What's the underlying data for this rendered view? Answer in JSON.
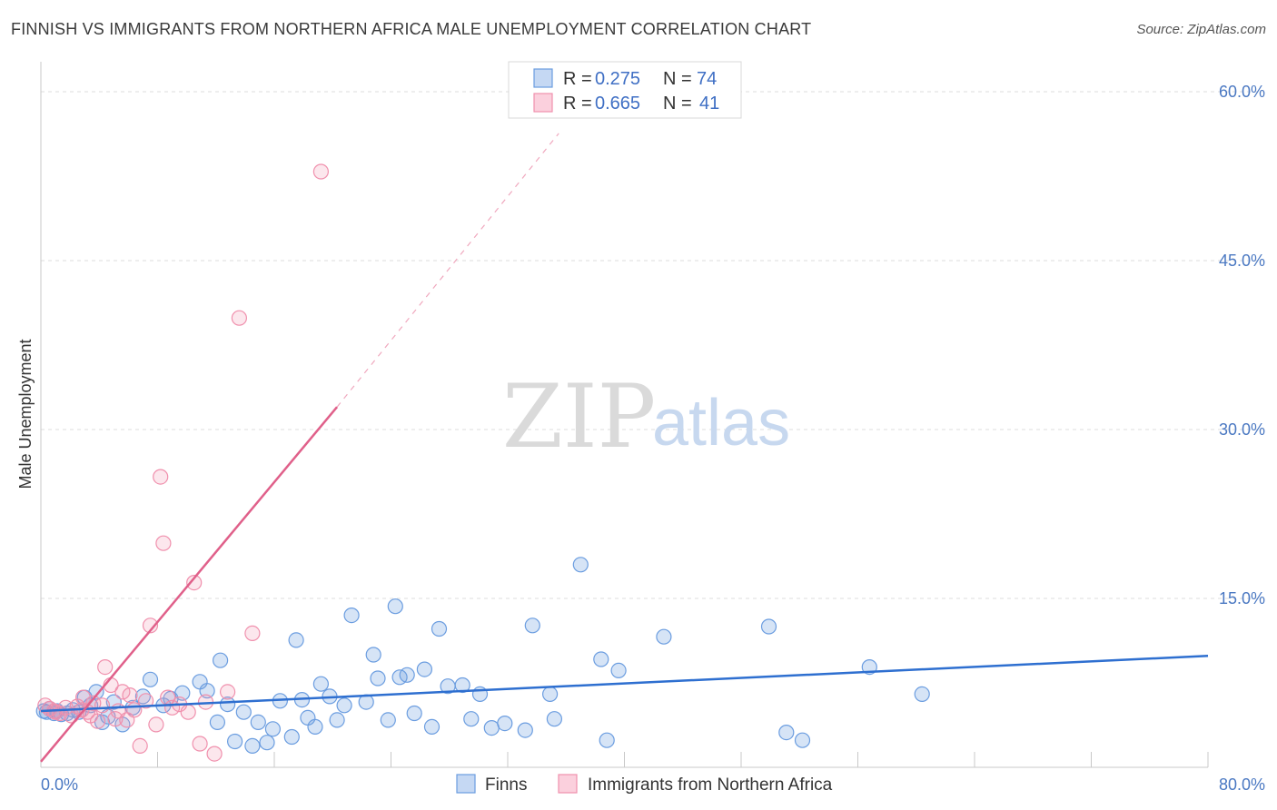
{
  "title": "FINNISH VS IMMIGRANTS FROM NORTHERN AFRICA MALE UNEMPLOYMENT CORRELATION CHART",
  "source": "Source: ZipAtlas.com",
  "watermark": {
    "zip": "ZIP",
    "atlas": "atlas"
  },
  "colors": {
    "finns": "#6b9de0",
    "finns_line": "#2e6fd0",
    "immigrants": "#f090ad",
    "immigrants_line": "#e0608a",
    "grid": "#dedede",
    "tick_text": "#4a78c2"
  },
  "chart_data": {
    "type": "scatter",
    "ylabel": "Male Unemployment",
    "xlim": [
      0,
      80
    ],
    "ylim": [
      0,
      62.5
    ],
    "x_tick_labels": [
      "0.0%",
      "80.0%"
    ],
    "y_ticks": [
      15,
      30,
      45,
      60
    ],
    "y_tick_labels": [
      "15.0%",
      "30.0%",
      "45.0%",
      "60.0%"
    ],
    "legend_position": "top-center",
    "legend": [
      {
        "r_label": "R =",
        "r": "0.275",
        "n_label": "N =",
        "n": "74"
      },
      {
        "r_label": "R =",
        "r": "0.665",
        "n_label": "N =",
        "n": "41"
      }
    ],
    "series": [
      {
        "name": "Finns",
        "trend": {
          "x": [
            0,
            80
          ],
          "y": [
            5.0,
            9.9
          ]
        },
        "points": [
          [
            0.2,
            5.0
          ],
          [
            0.4,
            4.9
          ],
          [
            0.6,
            5.2
          ],
          [
            0.9,
            4.8
          ],
          [
            1.1,
            5.0
          ],
          [
            1.4,
            4.7
          ],
          [
            1.8,
            4.8
          ],
          [
            2.2,
            5.1
          ],
          [
            2.6,
            4.9
          ],
          [
            3.0,
            6.2
          ],
          [
            3.4,
            5.5
          ],
          [
            3.8,
            6.7
          ],
          [
            4.2,
            4.0
          ],
          [
            4.6,
            4.5
          ],
          [
            5.0,
            5.8
          ],
          [
            5.6,
            3.8
          ],
          [
            6.3,
            5.3
          ],
          [
            7.0,
            6.3
          ],
          [
            7.5,
            7.8
          ],
          [
            8.4,
            5.5
          ],
          [
            8.9,
            6.1
          ],
          [
            9.7,
            6.6
          ],
          [
            10.9,
            7.6
          ],
          [
            11.4,
            6.8
          ],
          [
            12.1,
            4.0
          ],
          [
            12.3,
            9.5
          ],
          [
            12.8,
            5.6
          ],
          [
            13.3,
            2.3
          ],
          [
            13.9,
            4.9
          ],
          [
            14.5,
            1.9
          ],
          [
            14.9,
            4.0
          ],
          [
            15.5,
            2.2
          ],
          [
            15.9,
            3.4
          ],
          [
            16.4,
            5.9
          ],
          [
            17.2,
            2.7
          ],
          [
            17.5,
            11.3
          ],
          [
            17.9,
            6.0
          ],
          [
            18.3,
            4.4
          ],
          [
            18.8,
            3.6
          ],
          [
            19.2,
            7.4
          ],
          [
            19.8,
            6.3
          ],
          [
            20.3,
            4.2
          ],
          [
            20.8,
            5.5
          ],
          [
            21.3,
            13.5
          ],
          [
            22.3,
            5.8
          ],
          [
            22.8,
            10.0
          ],
          [
            23.1,
            7.9
          ],
          [
            23.8,
            4.2
          ],
          [
            24.3,
            14.3
          ],
          [
            24.6,
            8.0
          ],
          [
            25.1,
            8.2
          ],
          [
            25.6,
            4.8
          ],
          [
            26.3,
            8.7
          ],
          [
            26.8,
            3.6
          ],
          [
            27.3,
            12.3
          ],
          [
            27.9,
            7.2
          ],
          [
            28.9,
            7.3
          ],
          [
            29.5,
            4.3
          ],
          [
            30.1,
            6.5
          ],
          [
            30.9,
            3.5
          ],
          [
            31.8,
            3.9
          ],
          [
            33.2,
            3.3
          ],
          [
            33.7,
            12.6
          ],
          [
            34.9,
            6.5
          ],
          [
            35.2,
            4.3
          ],
          [
            37.0,
            18.0
          ],
          [
            38.4,
            9.6
          ],
          [
            38.8,
            2.4
          ],
          [
            39.6,
            8.6
          ],
          [
            42.7,
            11.6
          ],
          [
            49.9,
            12.5
          ],
          [
            51.1,
            3.1
          ],
          [
            52.2,
            2.4
          ],
          [
            56.8,
            8.9
          ],
          [
            60.4,
            6.5
          ]
        ]
      },
      {
        "name": "Immigrants from Northern Africa",
        "trend": {
          "x": [
            0,
            20.3
          ],
          "y": [
            0.5,
            32.0
          ]
        },
        "trend_ext": {
          "x": [
            20.3,
            35.5
          ],
          "y": [
            32.0,
            56.3
          ]
        },
        "points": [
          [
            0.3,
            5.5
          ],
          [
            0.6,
            5.2
          ],
          [
            0.9,
            5.0
          ],
          [
            1.3,
            4.8
          ],
          [
            1.7,
            5.3
          ],
          [
            2.1,
            4.6
          ],
          [
            2.5,
            5.4
          ],
          [
            2.9,
            6.2
          ],
          [
            3.2,
            4.9
          ],
          [
            3.6,
            5.7
          ],
          [
            3.9,
            4.1
          ],
          [
            4.2,
            5.5
          ],
          [
            4.4,
            8.9
          ],
          [
            4.8,
            7.3
          ],
          [
            5.1,
            4.3
          ],
          [
            5.3,
            5.0
          ],
          [
            5.6,
            6.7
          ],
          [
            5.9,
            4.2
          ],
          [
            6.1,
            6.4
          ],
          [
            6.4,
            5.1
          ],
          [
            6.8,
            1.9
          ],
          [
            7.2,
            5.9
          ],
          [
            7.5,
            12.6
          ],
          [
            7.9,
            3.8
          ],
          [
            8.2,
            25.8
          ],
          [
            8.4,
            19.9
          ],
          [
            8.7,
            6.2
          ],
          [
            9.0,
            5.3
          ],
          [
            9.5,
            5.6
          ],
          [
            10.1,
            4.9
          ],
          [
            10.5,
            16.4
          ],
          [
            10.9,
            2.1
          ],
          [
            11.3,
            5.8
          ],
          [
            11.9,
            1.2
          ],
          [
            12.8,
            6.7
          ],
          [
            13.6,
            39.9
          ],
          [
            14.5,
            11.9
          ],
          [
            19.2,
            52.9
          ],
          [
            2.8,
            5.1
          ],
          [
            3.4,
            4.6
          ],
          [
            1.0,
            4.9
          ]
        ]
      }
    ]
  },
  "bottom_legend": [
    "Finns",
    "Immigrants from Northern Africa"
  ]
}
